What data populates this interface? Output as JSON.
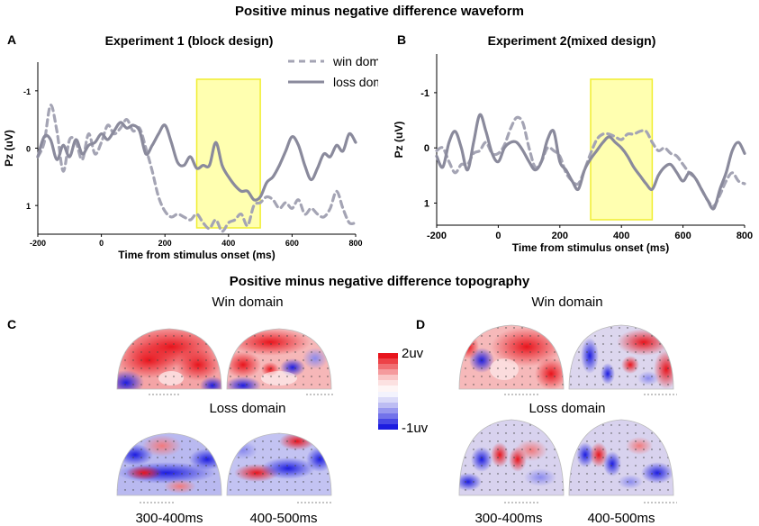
{
  "figure": {
    "waveform_title": "Positive minus negative difference waveform",
    "topography_title": "Positive minus negative difference topography"
  },
  "panels": {
    "A": "A",
    "B": "B",
    "C": "C",
    "D": "D"
  },
  "topography": {
    "C": {
      "win_label": "Win domain",
      "loss_label": "Loss domain",
      "windows": [
        "300-400ms",
        "400-500ms"
      ]
    },
    "D": {
      "win_label": "Win domain",
      "loss_label": "Loss domain",
      "windows": [
        "300-400ms",
        "400-500ms"
      ]
    },
    "colorbar": {
      "max_label": "2uv",
      "min_label": "-1uv",
      "colors": [
        "#e8141c",
        "#f2777a",
        "#fbd3d4",
        "#ffffff",
        "#c9c9f5",
        "#7a7aeb",
        "#1c1ce0"
      ]
    }
  },
  "chart_data": [
    {
      "type": "line",
      "title": "Experiment 1 (block design)",
      "xlabel": "Time from stimulus onset (ms)",
      "ylabel": "Pz (uV)",
      "xlim": [
        -200,
        800
      ],
      "ylim": [
        -1.5,
        1.5
      ],
      "y_inverted": true,
      "xticks": [
        -200,
        0,
        200,
        400,
        600,
        800
      ],
      "yticks": [
        -1,
        0,
        1
      ],
      "highlight": {
        "x0": 300,
        "x1": 500,
        "color": "#ffffb0"
      },
      "series": [
        {
          "name": "win domain",
          "style": "dashed",
          "color": "#a4a4b4",
          "x": [
            -200,
            -180,
            -160,
            -140,
            -120,
            -100,
            -80,
            -60,
            -40,
            -20,
            0,
            20,
            40,
            60,
            80,
            100,
            120,
            140,
            160,
            180,
            200,
            220,
            240,
            260,
            280,
            300,
            320,
            340,
            360,
            380,
            400,
            420,
            440,
            460,
            480,
            500,
            520,
            540,
            560,
            580,
            600,
            620,
            640,
            660,
            680,
            700,
            720,
            740,
            760,
            780,
            800
          ],
          "y": [
            0.15,
            -0.1,
            -0.75,
            -0.3,
            0.4,
            -0.15,
            -0.1,
            0.2,
            -0.25,
            0.1,
            -0.1,
            -0.4,
            -0.25,
            -0.35,
            -0.5,
            -0.3,
            -0.35,
            0.0,
            0.4,
            0.85,
            1.1,
            1.2,
            1.15,
            1.2,
            1.25,
            1.15,
            1.3,
            1.4,
            1.25,
            1.45,
            1.3,
            1.25,
            1.15,
            1.35,
            1.0,
            0.95,
            0.85,
            0.9,
            1.05,
            0.95,
            1.05,
            0.9,
            1.15,
            1.05,
            1.15,
            1.2,
            1.05,
            0.75,
            1.05,
            1.3,
            1.3
          ]
        },
        {
          "name": "loss domain",
          "style": "solid",
          "color": "#8a8a9c",
          "x": [
            -200,
            -180,
            -160,
            -140,
            -120,
            -100,
            -80,
            -60,
            -40,
            -20,
            0,
            20,
            40,
            60,
            80,
            100,
            120,
            140,
            160,
            180,
            200,
            220,
            240,
            260,
            280,
            300,
            320,
            340,
            360,
            380,
            400,
            420,
            440,
            460,
            480,
            500,
            520,
            540,
            560,
            580,
            600,
            620,
            640,
            660,
            680,
            700,
            720,
            740,
            760,
            780,
            800
          ],
          "y": [
            0.15,
            -0.2,
            -0.15,
            0.2,
            -0.05,
            0.15,
            -0.15,
            0.1,
            -0.05,
            -0.1,
            -0.25,
            -0.15,
            -0.3,
            -0.45,
            -0.35,
            -0.4,
            -0.3,
            0.1,
            -0.05,
            -0.25,
            -0.4,
            -0.1,
            0.25,
            0.3,
            0.15,
            0.35,
            0.3,
            0.3,
            -0.1,
            0.3,
            0.5,
            0.65,
            0.75,
            0.75,
            0.9,
            0.85,
            0.6,
            0.5,
            0.3,
            0.05,
            -0.2,
            -0.05,
            0.3,
            0.55,
            0.35,
            0.1,
            0.15,
            -0.05,
            0.05,
            -0.25,
            -0.1
          ]
        }
      ]
    },
    {
      "type": "line",
      "title": "Experiment 2(mixed design)",
      "xlabel": "Time from stimulus onset (ms)",
      "ylabel": "Pz (uV)",
      "xlim": [
        -200,
        800
      ],
      "ylim": [
        -1.7,
        1.4
      ],
      "y_inverted": true,
      "xticks": [
        -200,
        0,
        200,
        400,
        600,
        800
      ],
      "yticks": [
        -1,
        0,
        1
      ],
      "highlight": {
        "x0": 300,
        "x1": 500,
        "color": "#ffffb0"
      },
      "series": [
        {
          "name": "win domain",
          "style": "dashed",
          "color": "#a4a4b4",
          "x": [
            -200,
            -180,
            -160,
            -140,
            -120,
            -100,
            -80,
            -60,
            -40,
            -20,
            0,
            20,
            40,
            60,
            80,
            100,
            120,
            140,
            160,
            180,
            200,
            220,
            240,
            260,
            280,
            300,
            320,
            340,
            360,
            380,
            400,
            420,
            440,
            460,
            480,
            500,
            520,
            540,
            560,
            580,
            600,
            620,
            640,
            660,
            680,
            700,
            720,
            740,
            760,
            780,
            800
          ],
          "y": [
            0.05,
            0.0,
            0.25,
            0.45,
            0.3,
            0.3,
            0.1,
            0.05,
            -0.1,
            0.1,
            0.1,
            -0.05,
            -0.35,
            -0.55,
            -0.45,
            0.0,
            0.35,
            0.25,
            0.0,
            0.05,
            0.15,
            0.45,
            0.6,
            0.65,
            0.4,
            0.1,
            -0.15,
            -0.25,
            -0.25,
            -0.2,
            -0.15,
            -0.25,
            -0.25,
            -0.3,
            -0.3,
            -0.1,
            0.05,
            0.0,
            0.1,
            0.15,
            0.3,
            0.45,
            0.55,
            0.75,
            0.95,
            1.05,
            0.85,
            0.6,
            0.45,
            0.6,
            0.65
          ]
        },
        {
          "name": "loss domain",
          "style": "solid",
          "color": "#8a8a9c",
          "x": [
            -200,
            -180,
            -160,
            -140,
            -120,
            -100,
            -80,
            -60,
            -40,
            -20,
            0,
            20,
            40,
            60,
            80,
            100,
            120,
            140,
            160,
            180,
            200,
            220,
            240,
            260,
            280,
            300,
            320,
            340,
            360,
            380,
            400,
            420,
            440,
            460,
            480,
            500,
            520,
            540,
            560,
            580,
            600,
            620,
            640,
            660,
            680,
            700,
            720,
            740,
            760,
            780,
            800
          ],
          "y": [
            0.15,
            0.35,
            -0.1,
            -0.3,
            0.0,
            0.4,
            -0.1,
            -0.6,
            -0.3,
            0.1,
            0.25,
            0.0,
            -0.1,
            -0.1,
            0.05,
            0.25,
            0.4,
            0.25,
            -0.15,
            -0.3,
            0.25,
            0.4,
            0.6,
            0.75,
            0.4,
            0.2,
            0.05,
            -0.1,
            -0.2,
            -0.1,
            0.0,
            0.15,
            0.35,
            0.5,
            0.65,
            0.75,
            0.5,
            0.35,
            0.3,
            0.45,
            0.6,
            0.45,
            0.55,
            0.75,
            0.95,
            1.1,
            0.75,
            0.45,
            0.05,
            -0.1,
            0.1
          ]
        }
      ]
    }
  ]
}
